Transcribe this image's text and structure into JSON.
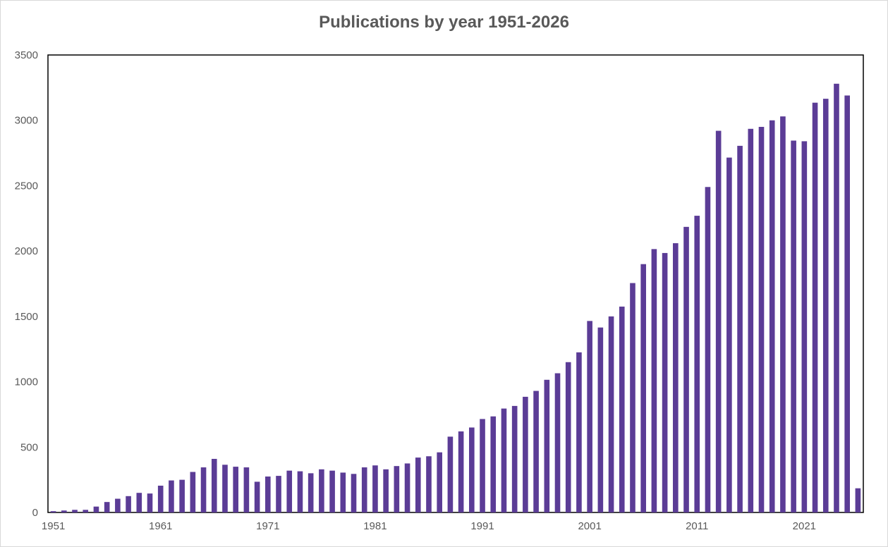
{
  "chart_data": {
    "type": "bar",
    "title": "Publications by year 1951-2026",
    "xlabel": "",
    "ylabel": "",
    "ylim": [
      0,
      3500
    ],
    "yticks": [
      0,
      500,
      1000,
      1500,
      2000,
      2500,
      3000,
      3500
    ],
    "x_tick_labels": [
      "1951",
      "1961",
      "1971",
      "1981",
      "1991",
      "2001",
      "2011",
      "2021"
    ],
    "grid": false,
    "legend": "none",
    "bar_color": "#5b3c96",
    "categories": [
      1951,
      1952,
      1953,
      1954,
      1955,
      1956,
      1957,
      1958,
      1959,
      1960,
      1961,
      1962,
      1963,
      1964,
      1965,
      1966,
      1967,
      1968,
      1969,
      1970,
      1971,
      1972,
      1973,
      1974,
      1975,
      1976,
      1977,
      1978,
      1979,
      1980,
      1981,
      1982,
      1983,
      1984,
      1985,
      1986,
      1987,
      1988,
      1989,
      1990,
      1991,
      1992,
      1993,
      1994,
      1995,
      1996,
      1997,
      1998,
      1999,
      2000,
      2001,
      2002,
      2003,
      2004,
      2005,
      2006,
      2007,
      2008,
      2009,
      2010,
      2011,
      2012,
      2013,
      2014,
      2015,
      2016,
      2017,
      2018,
      2019,
      2020,
      2021,
      2022,
      2023,
      2024,
      2025,
      2026
    ],
    "values": [
      10,
      15,
      20,
      20,
      45,
      80,
      105,
      125,
      150,
      145,
      205,
      245,
      250,
      310,
      345,
      410,
      365,
      350,
      345,
      235,
      275,
      280,
      320,
      315,
      300,
      330,
      320,
      305,
      295,
      345,
      360,
      330,
      355,
      375,
      420,
      430,
      460,
      580,
      620,
      650,
      715,
      735,
      795,
      815,
      885,
      930,
      1015,
      1065,
      1150,
      1225,
      1465,
      1415,
      1500,
      1575,
      1755,
      1900,
      2015,
      1985,
      2060,
      2185,
      2270,
      2490,
      2920,
      2715,
      2805,
      2935,
      2950,
      3000,
      3030,
      2845,
      2840,
      3135,
      3165,
      3280,
      3190,
      185
    ]
  }
}
